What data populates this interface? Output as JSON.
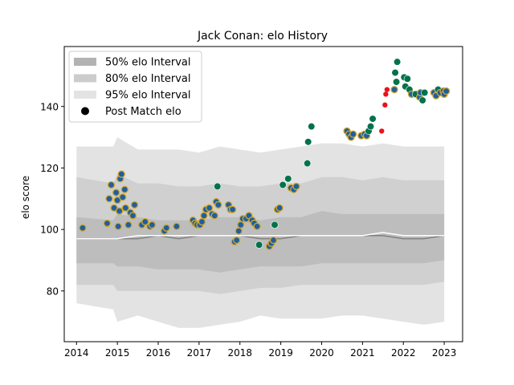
{
  "chart_data": {
    "type": "scatter",
    "title": "Jack Conan: elo History",
    "xlabel": "",
    "ylabel": "elo score",
    "xlim": [
      2013.7,
      2023.45
    ],
    "ylim": [
      63.5,
      159.5
    ],
    "xticks": [
      2014,
      2015,
      2016,
      2017,
      2018,
      2019,
      2020,
      2021,
      2022,
      2023
    ],
    "yticks": [
      80,
      100,
      120,
      140
    ],
    "grid": false,
    "legend_position": "top-left",
    "legend": [
      {
        "label": "50% elo Interval",
        "kind": "band",
        "color": "#b3b3b3"
      },
      {
        "label": "80% elo Interval",
        "kind": "band",
        "color": "#cccccc"
      },
      {
        "label": "95% elo Interval",
        "kind": "band",
        "color": "#e3e3e3"
      },
      {
        "label": "Post Match elo",
        "kind": "marker",
        "color": "#000000"
      }
    ],
    "colors": {
      "band50": "#bdbdbd",
      "band80": "#d0d0d0",
      "band95": "#e3e3e3",
      "median_line": "#808080",
      "mean_line": "#ffffff",
      "point_blue": "#1f5f9f",
      "point_blue_edge": "#d4a72c",
      "point_green": "#00734a",
      "point_red": "#e8141b"
    },
    "bands": {
      "x": [
        2014.0,
        2014.9,
        2015.0,
        2015.5,
        2016.0,
        2016.5,
        2017.0,
        2017.5,
        2018.0,
        2018.5,
        2019.0,
        2019.5,
        2020.0,
        2020.5,
        2021.0,
        2021.5,
        2022.0,
        2022.5,
        2023.0
      ],
      "p95_upper": [
        127,
        127,
        130,
        126,
        126,
        126,
        125,
        127,
        126,
        125,
        126,
        127,
        128,
        128,
        127,
        128,
        127,
        127,
        127
      ],
      "p95_lower": [
        76,
        74,
        70,
        72,
        70,
        68,
        68,
        69,
        70,
        72,
        71,
        71,
        71,
        72,
        72,
        71,
        70,
        69,
        70
      ],
      "p80_upper": [
        117,
        115,
        118,
        115,
        115,
        114,
        114,
        115,
        114,
        114,
        115,
        115,
        117,
        117,
        116,
        117,
        116,
        116,
        116
      ],
      "p80_lower": [
        82,
        82,
        80,
        80,
        80,
        80,
        80,
        79,
        80,
        81,
        81,
        82,
        82,
        82,
        82,
        82,
        82,
        82,
        83
      ],
      "p50_upper": [
        104,
        103,
        105,
        104,
        103,
        103,
        103,
        104,
        104,
        103,
        104,
        104,
        106,
        105,
        105,
        105,
        105,
        105,
        105
      ],
      "p50_lower": [
        89,
        89,
        88,
        88,
        87,
        87,
        87,
        86,
        87,
        88,
        88,
        88,
        89,
        89,
        89,
        89,
        89,
        89,
        90
      ],
      "median": [
        97,
        97,
        97,
        97,
        98,
        97,
        98,
        98,
        98,
        97,
        97,
        98,
        98,
        98,
        98,
        98,
        97,
        97,
        98
      ],
      "mean": [
        97,
        97,
        97,
        98,
        98,
        98,
        98,
        98,
        98,
        98,
        98,
        98,
        98,
        98,
        98,
        99,
        98,
        98,
        98
      ]
    },
    "series": [
      {
        "name": "Post Match elo",
        "points": [
          {
            "x": 2014.15,
            "y": 100.5,
            "c": "blue"
          },
          {
            "x": 2014.75,
            "y": 102,
            "c": "blue"
          },
          {
            "x": 2014.8,
            "y": 110,
            "c": "blue"
          },
          {
            "x": 2014.85,
            "y": 114.5,
            "c": "blue"
          },
          {
            "x": 2014.92,
            "y": 107,
            "c": "blue"
          },
          {
            "x": 2014.97,
            "y": 112,
            "c": "blue"
          },
          {
            "x": 2015.0,
            "y": 109.5,
            "c": "blue"
          },
          {
            "x": 2015.02,
            "y": 101,
            "c": "blue"
          },
          {
            "x": 2015.05,
            "y": 106,
            "c": "blue"
          },
          {
            "x": 2015.07,
            "y": 116.5,
            "c": "blue"
          },
          {
            "x": 2015.1,
            "y": 118,
            "c": "blue"
          },
          {
            "x": 2015.13,
            "y": 110.5,
            "c": "blue"
          },
          {
            "x": 2015.18,
            "y": 113,
            "c": "blue"
          },
          {
            "x": 2015.2,
            "y": 107,
            "c": "blue"
          },
          {
            "x": 2015.27,
            "y": 101.5,
            "c": "blue"
          },
          {
            "x": 2015.32,
            "y": 105.5,
            "c": "blue"
          },
          {
            "x": 2015.38,
            "y": 104.5,
            "c": "blue"
          },
          {
            "x": 2015.42,
            "y": 108,
            "c": "blue"
          },
          {
            "x": 2015.6,
            "y": 101.5,
            "c": "blue"
          },
          {
            "x": 2015.68,
            "y": 102.5,
            "c": "blue"
          },
          {
            "x": 2015.8,
            "y": 101,
            "c": "blue"
          },
          {
            "x": 2015.85,
            "y": 101.5,
            "c": "blue"
          },
          {
            "x": 2016.15,
            "y": 99.5,
            "c": "blue"
          },
          {
            "x": 2016.2,
            "y": 100.5,
            "c": "blue"
          },
          {
            "x": 2016.45,
            "y": 101,
            "c": "blue"
          },
          {
            "x": 2016.85,
            "y": 103,
            "c": "blue"
          },
          {
            "x": 2016.9,
            "y": 102,
            "c": "blue"
          },
          {
            "x": 2016.95,
            "y": 101.5,
            "c": "blue"
          },
          {
            "x": 2017.02,
            "y": 101.5,
            "c": "blue"
          },
          {
            "x": 2017.07,
            "y": 102.5,
            "c": "blue"
          },
          {
            "x": 2017.12,
            "y": 104.5,
            "c": "blue"
          },
          {
            "x": 2017.17,
            "y": 106.5,
            "c": "blue"
          },
          {
            "x": 2017.25,
            "y": 107,
            "c": "blue"
          },
          {
            "x": 2017.32,
            "y": 105,
            "c": "blue"
          },
          {
            "x": 2017.38,
            "y": 104.5,
            "c": "blue"
          },
          {
            "x": 2017.42,
            "y": 109,
            "c": "blue"
          },
          {
            "x": 2017.47,
            "y": 108,
            "c": "blue"
          },
          {
            "x": 2017.45,
            "y": 114,
            "c": "green"
          },
          {
            "x": 2017.72,
            "y": 108,
            "c": "blue"
          },
          {
            "x": 2017.77,
            "y": 106.5,
            "c": "blue"
          },
          {
            "x": 2017.82,
            "y": 106.5,
            "c": "blue"
          },
          {
            "x": 2017.87,
            "y": 96,
            "c": "blue"
          },
          {
            "x": 2017.92,
            "y": 96.5,
            "c": "blue"
          },
          {
            "x": 2017.97,
            "y": 99.5,
            "c": "blue"
          },
          {
            "x": 2018.02,
            "y": 101.5,
            "c": "blue"
          },
          {
            "x": 2018.07,
            "y": 103.5,
            "c": "blue"
          },
          {
            "x": 2018.15,
            "y": 103.5,
            "c": "blue"
          },
          {
            "x": 2018.22,
            "y": 104.5,
            "c": "blue"
          },
          {
            "x": 2018.3,
            "y": 103,
            "c": "blue"
          },
          {
            "x": 2018.35,
            "y": 102,
            "c": "blue"
          },
          {
            "x": 2018.42,
            "y": 101,
            "c": "blue"
          },
          {
            "x": 2018.47,
            "y": 95,
            "c": "green"
          },
          {
            "x": 2018.72,
            "y": 94.5,
            "c": "blue"
          },
          {
            "x": 2018.77,
            "y": 95.5,
            "c": "blue"
          },
          {
            "x": 2018.82,
            "y": 96.5,
            "c": "blue"
          },
          {
            "x": 2018.85,
            "y": 101.5,
            "c": "green"
          },
          {
            "x": 2018.92,
            "y": 106.5,
            "c": "blue"
          },
          {
            "x": 2018.97,
            "y": 107,
            "c": "blue"
          },
          {
            "x": 2019.05,
            "y": 114.5,
            "c": "green"
          },
          {
            "x": 2019.18,
            "y": 116.5,
            "c": "green"
          },
          {
            "x": 2019.25,
            "y": 113.5,
            "c": "blue"
          },
          {
            "x": 2019.32,
            "y": 113,
            "c": "blue"
          },
          {
            "x": 2019.38,
            "y": 114,
            "c": "blue"
          },
          {
            "x": 2019.65,
            "y": 121.5,
            "c": "green"
          },
          {
            "x": 2019.67,
            "y": 128.5,
            "c": "green"
          },
          {
            "x": 2019.75,
            "y": 133.5,
            "c": "green"
          },
          {
            "x": 2020.62,
            "y": 132,
            "c": "blue"
          },
          {
            "x": 2020.67,
            "y": 131,
            "c": "blue"
          },
          {
            "x": 2020.72,
            "y": 130,
            "c": "blue"
          },
          {
            "x": 2020.77,
            "y": 131,
            "c": "blue"
          },
          {
            "x": 2020.97,
            "y": 130.5,
            "c": "blue"
          },
          {
            "x": 2021.05,
            "y": 131,
            "c": "blue"
          },
          {
            "x": 2021.1,
            "y": 130.5,
            "c": "blue"
          },
          {
            "x": 2021.15,
            "y": 132,
            "c": "green"
          },
          {
            "x": 2021.2,
            "y": 133.5,
            "c": "green"
          },
          {
            "x": 2021.25,
            "y": 136,
            "c": "green"
          },
          {
            "x": 2021.47,
            "y": 132,
            "c": "red"
          },
          {
            "x": 2021.55,
            "y": 140.5,
            "c": "red"
          },
          {
            "x": 2021.57,
            "y": 144,
            "c": "red"
          },
          {
            "x": 2021.6,
            "y": 145.5,
            "c": "red"
          },
          {
            "x": 2021.78,
            "y": 145.5,
            "c": "blue"
          },
          {
            "x": 2021.8,
            "y": 151,
            "c": "green"
          },
          {
            "x": 2021.85,
            "y": 154.5,
            "c": "green"
          },
          {
            "x": 2021.83,
            "y": 148,
            "c": "green"
          },
          {
            "x": 2022.02,
            "y": 149.5,
            "c": "green"
          },
          {
            "x": 2022.05,
            "y": 146.5,
            "c": "green"
          },
          {
            "x": 2022.1,
            "y": 149,
            "c": "green"
          },
          {
            "x": 2022.15,
            "y": 145.5,
            "c": "green"
          },
          {
            "x": 2022.2,
            "y": 144,
            "c": "blue"
          },
          {
            "x": 2022.3,
            "y": 144,
            "c": "green"
          },
          {
            "x": 2022.4,
            "y": 143,
            "c": "blue"
          },
          {
            "x": 2022.42,
            "y": 144.5,
            "c": "blue"
          },
          {
            "x": 2022.47,
            "y": 142,
            "c": "green"
          },
          {
            "x": 2022.52,
            "y": 144.5,
            "c": "green"
          },
          {
            "x": 2022.75,
            "y": 144.5,
            "c": "blue"
          },
          {
            "x": 2022.8,
            "y": 143.5,
            "c": "blue"
          },
          {
            "x": 2022.85,
            "y": 145.5,
            "c": "green"
          },
          {
            "x": 2022.9,
            "y": 144.5,
            "c": "blue"
          },
          {
            "x": 2022.98,
            "y": 145,
            "c": "blue"
          },
          {
            "x": 2023.0,
            "y": 144,
            "c": "blue"
          },
          {
            "x": 2023.05,
            "y": 145,
            "c": "blue"
          }
        ]
      }
    ]
  }
}
